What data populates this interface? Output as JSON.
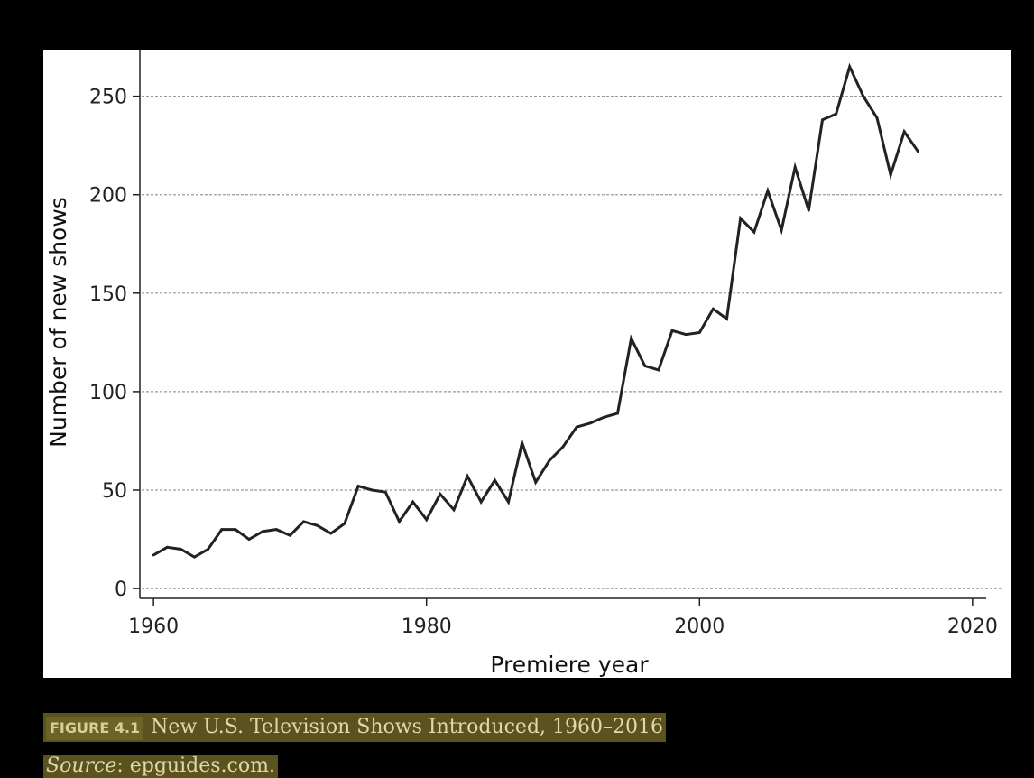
{
  "figure": {
    "label": "FIGURE 4.1",
    "title": "New U.S. Television Shows Introduced, 1960–2016",
    "source_label": "Source",
    "source_text": ": epguides.com."
  },
  "colors": {
    "page_background": "#000000",
    "plot_background": "#ffffff",
    "line": "#222222",
    "grid": "#999999",
    "caption_highlight": "#5a5320",
    "caption_text": "#e0d8a8"
  },
  "chart_data": {
    "type": "line",
    "title": "",
    "xlabel": "Premiere year",
    "ylabel": "Number of new shows",
    "xlim": [
      1959,
      2021
    ],
    "ylim": [
      -5,
      270
    ],
    "xticks": [
      1960,
      1980,
      2000,
      2020
    ],
    "yticks": [
      0,
      50,
      100,
      150,
      200,
      250
    ],
    "grid": "horizontal dashed",
    "legend": "none",
    "series": [
      {
        "x": [
          1960,
          1961,
          1962,
          1963,
          1964,
          1965,
          1966,
          1967,
          1968,
          1969,
          1970,
          1971,
          1972,
          1973,
          1974,
          1975,
          1976,
          1977,
          1978,
          1979,
          1980,
          1981,
          1982,
          1983,
          1984,
          1985,
          1986,
          1987,
          1988,
          1989,
          1990,
          1991,
          1992,
          1993,
          1994,
          1995,
          1996,
          1997,
          1998,
          1999,
          2000,
          2001,
          2002,
          2003,
          2004,
          2005,
          2006,
          2007,
          2008,
          2009,
          2010,
          2011,
          2012,
          2013,
          2014,
          2015,
          2016
        ],
        "values": [
          17,
          21,
          20,
          16,
          20,
          30,
          30,
          25,
          29,
          30,
          27,
          34,
          32,
          28,
          33,
          52,
          50,
          49,
          34,
          44,
          35,
          48,
          40,
          57,
          44,
          55,
          44,
          74,
          54,
          65,
          72,
          82,
          84,
          87,
          89,
          127,
          113,
          111,
          131,
          129,
          130,
          142,
          137,
          188,
          181,
          202,
          182,
          214,
          192,
          238,
          241,
          265,
          250,
          239,
          210,
          232,
          222
        ]
      }
    ]
  }
}
